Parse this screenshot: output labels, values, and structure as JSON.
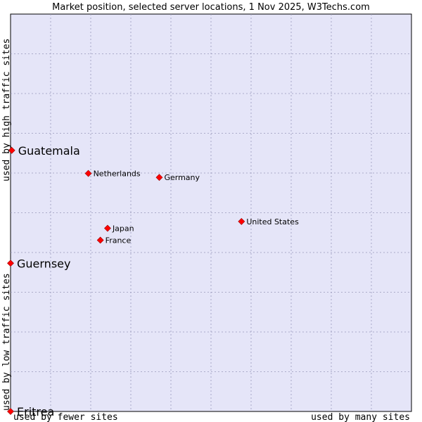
{
  "chart_data": {
    "type": "scatter",
    "title": "Market position, selected server locations, 1 Nov 2025, W3Techs.com",
    "xlabel_low": "used by fewer sites",
    "xlabel_high": "used by many sites",
    "ylabel_low": "used by low traffic sites",
    "ylabel_high": "used by high traffic sites",
    "xlim": [
      0,
      100
    ],
    "ylim": [
      0,
      100
    ],
    "grid": true,
    "colors": {
      "plot_bg": "#e5e5f8",
      "grid": "#9999bb",
      "border": "#000000",
      "marker": "#ff0000",
      "marker_edge": "#990000"
    },
    "points": [
      {
        "name": "Guatemala",
        "x": 0.3,
        "y": 65.7,
        "emphasis": true
      },
      {
        "name": "Netherlands",
        "x": 19.4,
        "y": 59.9,
        "emphasis": false
      },
      {
        "name": "Germany",
        "x": 37.1,
        "y": 58.9,
        "emphasis": false
      },
      {
        "name": "United States",
        "x": 57.6,
        "y": 47.8,
        "emphasis": false
      },
      {
        "name": "Japan",
        "x": 24.2,
        "y": 46.1,
        "emphasis": false
      },
      {
        "name": "France",
        "x": 22.4,
        "y": 43.1,
        "emphasis": false
      },
      {
        "name": "Guernsey",
        "x": 0.0,
        "y": 37.3,
        "emphasis": true
      },
      {
        "name": "Eritrea",
        "x": 0.0,
        "y": 0.0,
        "emphasis": true
      }
    ]
  }
}
